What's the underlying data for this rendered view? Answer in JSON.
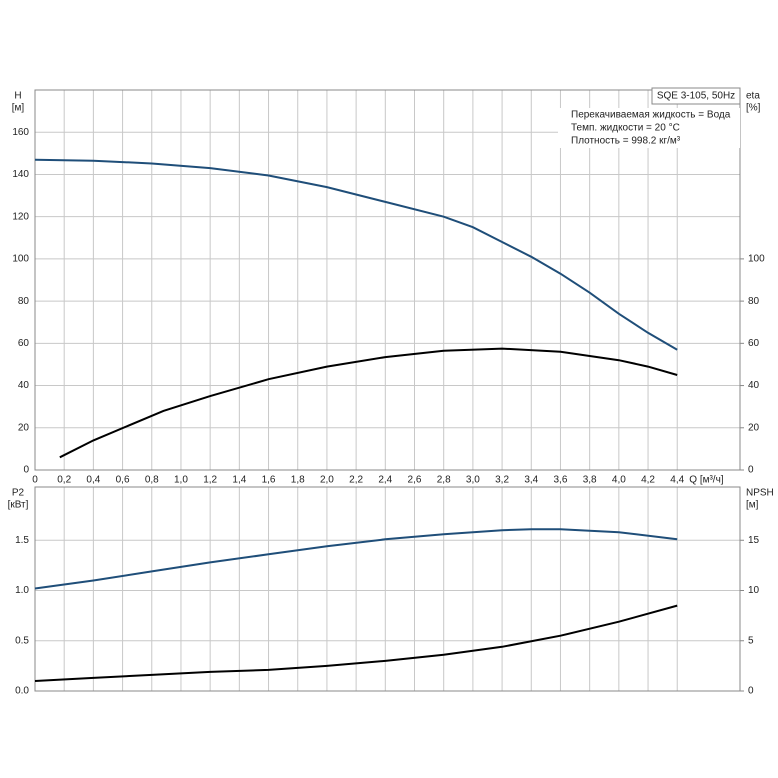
{
  "chart_data": [
    {
      "type": "line",
      "title": "SQE 3-105, 50Hz",
      "annotations": [
        "Перекачиваемая жидкость = Вода",
        "Темп. жидкости = 20 °C",
        "Плотность = 998.2 кг/м³"
      ],
      "y_label": "H",
      "y_unit": "[м]",
      "y2_label": "eta",
      "y2_unit": "[%]",
      "x_label": "Q [м³/ч]",
      "xlim": [
        0,
        4.83
      ],
      "xticks": [
        0,
        {
          "value": 0.2,
          "label": "0,2"
        },
        {
          "value": 0.4,
          "label": "0,4"
        },
        {
          "value": 0.6,
          "label": "0,6"
        },
        {
          "value": 0.8,
          "label": "0,8"
        },
        {
          "value": 1.0,
          "label": "1,0"
        },
        {
          "value": 1.2,
          "label": "1,2"
        },
        {
          "value": 1.4,
          "label": "1,4"
        },
        {
          "value": 1.6,
          "label": "1,6"
        },
        {
          "value": 1.8,
          "label": "1,8"
        },
        {
          "value": 2.0,
          "label": "2,0"
        },
        {
          "value": 2.2,
          "label": "2,2"
        },
        {
          "value": 2.4,
          "label": "2,4"
        },
        {
          "value": 2.6,
          "label": "2,6"
        },
        {
          "value": 2.8,
          "label": "2,8"
        },
        {
          "value": 3.0,
          "label": "3,0"
        },
        {
          "value": 3.2,
          "label": "3,2"
        },
        {
          "value": 3.4,
          "label": "3,4"
        },
        {
          "value": 3.6,
          "label": "3,6"
        },
        {
          "value": 3.8,
          "label": "3,8"
        },
        {
          "value": 4.0,
          "label": "4,0"
        },
        {
          "value": 4.2,
          "label": "4,2"
        },
        {
          "value": 4.4,
          "label": "4,4"
        }
      ],
      "ylim": [
        0,
        180
      ],
      "yticks": [
        0,
        20,
        40,
        60,
        80,
        100,
        120,
        140,
        160
      ],
      "y2lim": [
        0,
        180
      ],
      "y2ticks": [
        0,
        20,
        40,
        60,
        80,
        100
      ],
      "grid": true,
      "series": [
        {
          "name": "H",
          "color": "#1f4e79",
          "x": [
            0,
            0.4,
            0.8,
            1.2,
            1.6,
            2.0,
            2.4,
            2.8,
            3.0,
            3.2,
            3.4,
            3.6,
            3.8,
            4.0,
            4.2,
            4.4
          ],
          "values": [
            147,
            146.5,
            145.2,
            143,
            139.5,
            134,
            127,
            120,
            115,
            108,
            101,
            93,
            84,
            74,
            65,
            57
          ]
        },
        {
          "name": "eta",
          "color": "#000000",
          "axis": "y2",
          "x": [
            0.17,
            0.4,
            0.88,
            1.2,
            1.6,
            2.0,
            2.4,
            2.8,
            3.2,
            3.6,
            4.0,
            4.2,
            4.4
          ],
          "values": [
            6,
            14,
            28,
            35,
            43,
            49,
            53.5,
            56.5,
            57.5,
            56,
            52,
            49,
            45
          ]
        }
      ]
    },
    {
      "type": "line",
      "y_label": "P2",
      "y_unit": "[кВт]",
      "y2_label": "NPSH",
      "y2_unit": "[м]",
      "xlim": [
        0,
        4.83
      ],
      "xticks": [
        0,
        0.2,
        0.4,
        0.6,
        0.8,
        1.0,
        1.2,
        1.4,
        1.6,
        1.8,
        2.0,
        2.2,
        2.4,
        2.6,
        2.8,
        3.0,
        3.2,
        3.4,
        3.6,
        3.8,
        4.0,
        4.2,
        4.4
      ],
      "ylim": [
        0,
        2.03
      ],
      "yticks": [
        {
          "value": 0,
          "label": "0.0"
        },
        0.5,
        {
          "value": 1,
          "label": "1.0"
        },
        1.5
      ],
      "y2lim": [
        0,
        20.3
      ],
      "y2ticks": [
        0,
        5,
        10,
        15
      ],
      "grid": true,
      "series": [
        {
          "name": "P2",
          "color": "#1f4e79",
          "x": [
            0,
            0.4,
            0.8,
            1.2,
            1.6,
            2.0,
            2.4,
            2.8,
            3.2,
            3.4,
            3.6,
            4.0,
            4.4
          ],
          "values": [
            1.02,
            1.1,
            1.19,
            1.28,
            1.36,
            1.44,
            1.51,
            1.56,
            1.6,
            1.61,
            1.61,
            1.58,
            1.51
          ]
        },
        {
          "name": "NPSH",
          "color": "#000000",
          "axis": "y2",
          "x": [
            0,
            0.4,
            0.8,
            1.2,
            1.6,
            2.0,
            2.4,
            2.8,
            3.2,
            3.6,
            4.0,
            4.4
          ],
          "values": [
            1.0,
            1.3,
            1.6,
            1.9,
            2.1,
            2.5,
            3.0,
            3.6,
            4.4,
            5.5,
            6.9,
            8.5
          ]
        }
      ]
    }
  ]
}
